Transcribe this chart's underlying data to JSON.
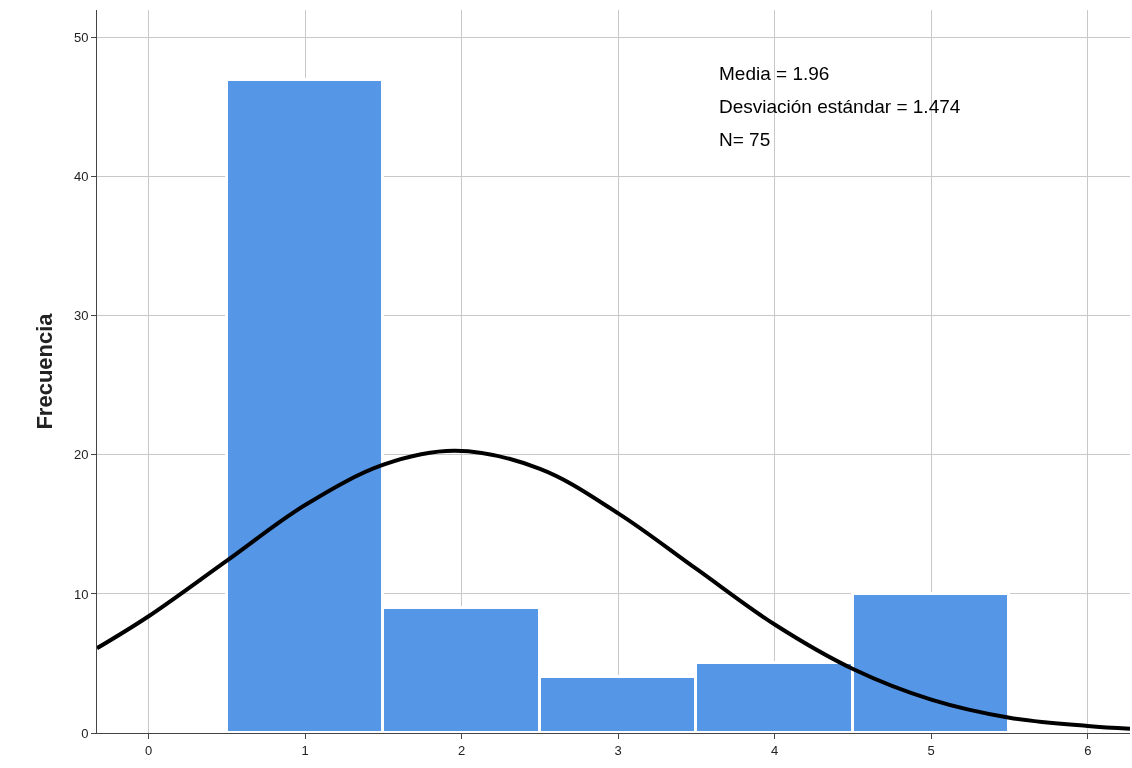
{
  "chart_data": {
    "type": "histogram",
    "ylabel": "Frecuencia",
    "annotations": [
      "Media = 1.96",
      "Desviación estándar = 1.474",
      "N= 75"
    ],
    "xlim": [
      -0.33,
      6.27
    ],
    "xticks": [
      0,
      1,
      2,
      3,
      4,
      5,
      6
    ],
    "ylim": [
      0,
      52
    ],
    "yticks": [
      0,
      10,
      20,
      30,
      40,
      50
    ],
    "grid": true,
    "series": [
      {
        "color": "#5596e6",
        "bins": [
          0.5,
          1.5,
          2.5,
          3.5,
          4.5,
          5.5
        ],
        "values": [
          47,
          9,
          4,
          5,
          10
        ]
      },
      {
        "type": "line",
        "color": "#000000",
        "x": [
          -0.33,
          0,
          0.5,
          1,
          1.5,
          1.96,
          2.5,
          3,
          3.5,
          4,
          4.5,
          5,
          5.5,
          6,
          6.27
        ],
        "values": [
          6.1,
          8.4,
          12.4,
          16.4,
          19.3,
          20.3,
          19.0,
          15.8,
          11.8,
          7.8,
          4.6,
          2.4,
          1.1,
          0.5,
          0.3
        ]
      }
    ]
  }
}
